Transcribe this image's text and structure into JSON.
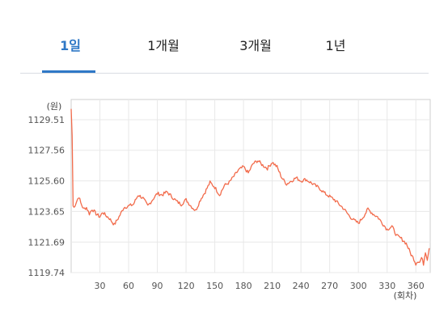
{
  "tabs": [
    {
      "label": "1일",
      "active": true
    },
    {
      "label": "1개월",
      "active": false
    },
    {
      "label": "3개월",
      "active": false
    },
    {
      "label": "1년",
      "active": false
    }
  ],
  "colors": {
    "accent": "#2f78c6",
    "line": "#f26b4b",
    "grid": "#e8e8e8"
  },
  "chart_data": {
    "type": "line",
    "ylabel": "(원)",
    "xlabel": "(회차)",
    "yticks": [
      1129.51,
      1127.56,
      1125.6,
      1123.65,
      1121.69,
      1119.74
    ],
    "ytick_labels": [
      "1129.51",
      "1127.56",
      "1125.60",
      "1123.65",
      "1121.69",
      "1119.74"
    ],
    "xticks": [
      30,
      60,
      90,
      120,
      150,
      180,
      210,
      240,
      270,
      300,
      330,
      360
    ],
    "xlim": [
      0,
      375
    ],
    "ylim": [
      1119.74,
      1130.8
    ],
    "grid": true,
    "series": [
      {
        "x": [
          0,
          1,
          2,
          3,
          5,
          8,
          10,
          13,
          16,
          19,
          22,
          26,
          30,
          33,
          36,
          40,
          45,
          50,
          55,
          60,
          65,
          70,
          75,
          80,
          85,
          90,
          95,
          100,
          105,
          110,
          115,
          120,
          125,
          130,
          135,
          140,
          145,
          150,
          155,
          160,
          165,
          170,
          175,
          180,
          185,
          190,
          195,
          200,
          205,
          210,
          215,
          220,
          225,
          230,
          235,
          240,
          245,
          250,
          255,
          260,
          265,
          270,
          275,
          280,
          285,
          290,
          295,
          300,
          305,
          310,
          315,
          320,
          325,
          330,
          335,
          340,
          345,
          350,
          355,
          358,
          360,
          362,
          364,
          366,
          368,
          370,
          372,
          374
        ],
        "y": [
          1130.2,
          1128.5,
          1124.0,
          1123.9,
          1124.2,
          1124.6,
          1124.2,
          1123.8,
          1123.9,
          1123.5,
          1123.8,
          1123.5,
          1123.3,
          1123.6,
          1123.4,
          1123.2,
          1122.8,
          1123.3,
          1123.9,
          1124.0,
          1124.1,
          1124.7,
          1124.5,
          1124.0,
          1124.4,
          1124.8,
          1124.7,
          1124.9,
          1124.6,
          1124.3,
          1124.1,
          1124.4,
          1124.0,
          1123.7,
          1124.4,
          1124.9,
          1125.5,
          1125.2,
          1124.7,
          1125.3,
          1125.5,
          1125.9,
          1126.3,
          1126.5,
          1126.1,
          1126.7,
          1126.9,
          1126.6,
          1126.4,
          1126.8,
          1126.5,
          1125.8,
          1125.4,
          1125.6,
          1125.8,
          1125.6,
          1125.7,
          1125.5,
          1125.3,
          1125.1,
          1124.8,
          1124.6,
          1124.4,
          1124.1,
          1123.8,
          1123.4,
          1123.1,
          1122.9,
          1123.3,
          1123.8,
          1123.5,
          1123.3,
          1122.9,
          1122.5,
          1122.7,
          1122.1,
          1121.9,
          1121.6,
          1120.9,
          1120.6,
          1120.3,
          1120.5,
          1120.4,
          1120.7,
          1120.3,
          1121.1,
          1120.6,
          1121.3
        ]
      }
    ]
  }
}
